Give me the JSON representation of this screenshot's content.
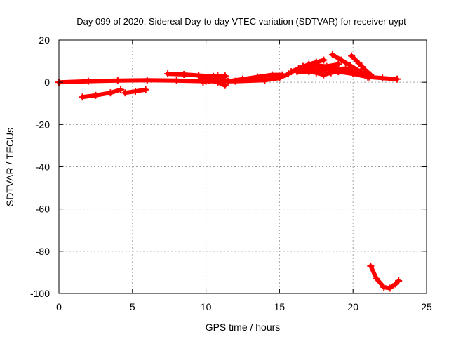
{
  "chart_data": {
    "type": "scatter",
    "title": "Day 099 of 2020, Sidereal Day-to-day VTEC variation (SDTVAR) for receiver uypt",
    "xlabel": "GPS time / hours",
    "ylabel": "SDTVAR / TECUs",
    "xlim": [
      0,
      25
    ],
    "ylim": [
      -100,
      20
    ],
    "xticks": [
      "0",
      "5",
      "10",
      "15",
      "20",
      "25"
    ],
    "yticks": [
      "-100",
      "-80",
      "-60",
      "-40",
      "-20",
      "0",
      "20"
    ],
    "grid": true,
    "color": "#ff0000",
    "series": [
      {
        "points": [
          [
            0,
            0
          ],
          [
            2,
            0.5
          ],
          [
            4,
            0.8
          ],
          [
            6,
            1.0
          ],
          [
            8,
            0.8
          ],
          [
            10,
            0.5
          ],
          [
            12,
            0.5
          ],
          [
            14,
            1.0
          ],
          [
            15,
            2.0
          ]
        ]
      },
      {
        "points": [
          [
            1.6,
            -7
          ],
          [
            2.5,
            -6.2
          ],
          [
            3.5,
            -5
          ],
          [
            4.2,
            -3.5
          ]
        ]
      },
      {
        "points": [
          [
            4.5,
            -5
          ],
          [
            5.2,
            -4.3
          ],
          [
            5.9,
            -3.5
          ]
        ]
      },
      {
        "points": [
          [
            7.4,
            4
          ],
          [
            8.5,
            3.7
          ],
          [
            9.5,
            3.2
          ],
          [
            10.5,
            2.8
          ],
          [
            11.2,
            2.2
          ]
        ]
      },
      {
        "points": [
          [
            9.5,
            3
          ],
          [
            10.2,
            1
          ],
          [
            10.8,
            0
          ],
          [
            11.3,
            -1.5
          ]
        ]
      },
      {
        "points": [
          [
            9.8,
            0
          ],
          [
            10.3,
            2
          ],
          [
            10.8,
            3
          ],
          [
            11.3,
            3
          ]
        ]
      },
      {
        "points": [
          [
            11.5,
            0.5
          ],
          [
            12.5,
            1.5
          ],
          [
            13.5,
            2.5
          ],
          [
            14.5,
            3.5
          ],
          [
            15.2,
            3.5
          ]
        ]
      },
      {
        "points": [
          [
            15.0,
            2
          ],
          [
            15.6,
            4
          ],
          [
            16.3,
            6.5
          ],
          [
            17.0,
            8.5
          ],
          [
            17.5,
            9.5
          ],
          [
            18.0,
            10.5
          ]
        ]
      },
      {
        "points": [
          [
            15.8,
            5
          ],
          [
            16.6,
            7.5
          ],
          [
            17.5,
            8
          ],
          [
            18.2,
            7.5
          ],
          [
            19.0,
            8.5
          ]
        ]
      },
      {
        "points": [
          [
            16.2,
            5
          ],
          [
            17.0,
            5
          ],
          [
            17.5,
            4.5
          ],
          [
            18.0,
            3.5
          ],
          [
            18.5,
            4.5
          ],
          [
            19.0,
            5
          ],
          [
            20.0,
            4
          ],
          [
            21.0,
            2.5
          ],
          [
            22.0,
            2
          ],
          [
            23.0,
            1.5
          ]
        ]
      },
      {
        "points": [
          [
            18.6,
            13
          ],
          [
            19.2,
            10.5
          ],
          [
            19.8,
            8
          ],
          [
            20.5,
            5
          ],
          [
            21.1,
            2.5
          ]
        ]
      },
      {
        "points": [
          [
            19.9,
            12.5
          ],
          [
            20.4,
            9
          ],
          [
            20.8,
            6
          ],
          [
            21.2,
            3.5
          ]
        ]
      },
      {
        "points": [
          [
            16.5,
            6
          ],
          [
            18.0,
            6
          ],
          [
            19.5,
            6.5
          ],
          [
            20.5,
            4
          ]
        ]
      },
      {
        "points": [
          [
            21.2,
            -87
          ],
          [
            21.6,
            -93
          ],
          [
            22.1,
            -97
          ],
          [
            22.5,
            -97.5
          ],
          [
            22.9,
            -95.5
          ],
          [
            23.1,
            -94
          ]
        ]
      }
    ]
  }
}
